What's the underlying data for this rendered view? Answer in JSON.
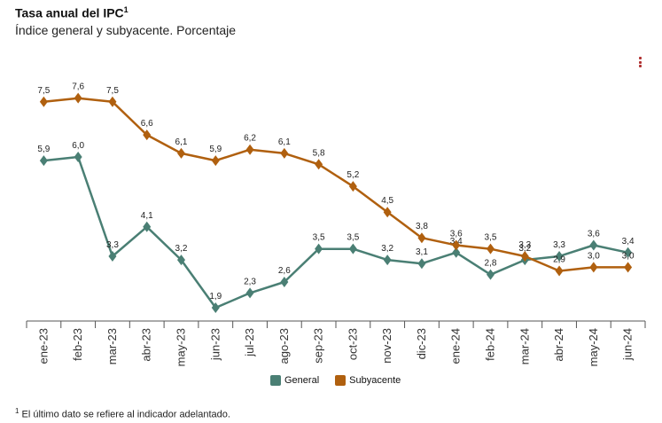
{
  "header": {
    "title": "Tasa anual del IPC",
    "title_sup": "1",
    "subtitle": "Índice general y subyacente. Porcentaje"
  },
  "menu_icon": "kebab-menu-icon",
  "footnote": {
    "sup": "1",
    "text": "El último dato se refiere al indicador adelantado."
  },
  "colors": {
    "general": "#4a7f74",
    "subyacente": "#b0600f",
    "axis": "#555555"
  },
  "chart_data": {
    "type": "line",
    "categories": [
      "ene-23",
      "feb-23",
      "mar-23",
      "abr-23",
      "may-23",
      "jun-23",
      "jul-23",
      "ago-23",
      "sep-23",
      "oct-23",
      "nov-23",
      "dic-23",
      "ene-24",
      "feb-24",
      "mar-24",
      "abr-24",
      "may-24",
      "jun-24"
    ],
    "series": [
      {
        "name": "General",
        "values": [
          5.9,
          6.0,
          3.3,
          4.1,
          3.2,
          1.9,
          2.3,
          2.6,
          3.5,
          3.5,
          3.2,
          3.1,
          3.4,
          2.8,
          3.2,
          3.3,
          3.6,
          3.4
        ]
      },
      {
        "name": "Subyacente",
        "values": [
          7.5,
          7.6,
          7.5,
          6.6,
          6.1,
          5.9,
          6.2,
          6.1,
          5.8,
          5.2,
          4.5,
          3.8,
          3.6,
          3.5,
          3.3,
          2.9,
          3.0,
          3.0
        ]
      }
    ],
    "title": "Tasa anual del IPC",
    "subtitle": "Índice general y subyacente. Porcentaje",
    "ylim": [
      1.5,
      8.5
    ],
    "grid": false,
    "legend": "bottom"
  }
}
